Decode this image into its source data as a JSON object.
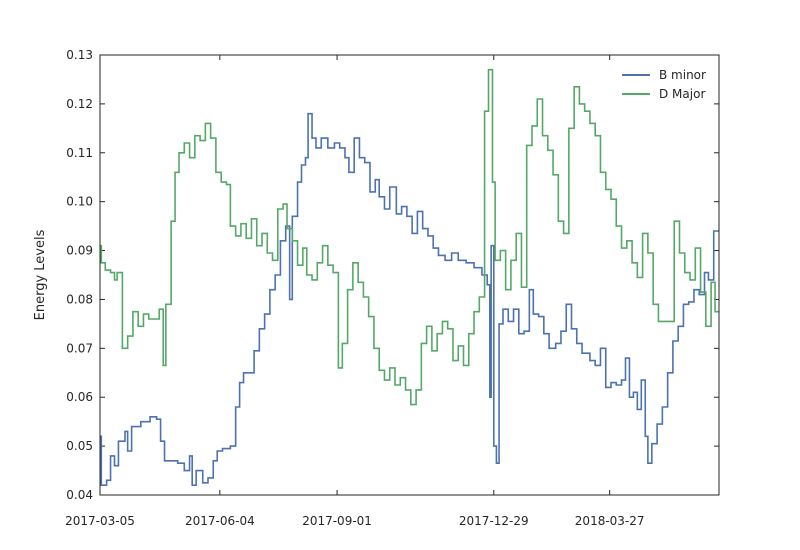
{
  "chart_data": {
    "type": "line",
    "title": "",
    "xlabel": "",
    "ylabel": "Energy Levels",
    "x_axis": {
      "type": "date",
      "range": [
        "2017-03-05",
        "2018-06-18"
      ],
      "ticks": [
        "2017-03-05",
        "2017-06-04",
        "2017-09-01",
        "2017-12-29",
        "2018-03-27"
      ]
    },
    "ylim": [
      0.04,
      0.13
    ],
    "yticks": [
      "0.04",
      "0.05",
      "0.06",
      "0.07",
      "0.08",
      "0.09",
      "0.10",
      "0.11",
      "0.12",
      "0.13"
    ],
    "grid": false,
    "legend_position": "top-right",
    "series": [
      {
        "name": "B minor",
        "color": "#4c72b0",
        "points": [
          [
            "2017-03-05",
            0.052
          ],
          [
            "2017-03-06",
            0.042
          ],
          [
            "2017-03-10",
            0.043
          ],
          [
            "2017-03-13",
            0.048
          ],
          [
            "2017-03-16",
            0.046
          ],
          [
            "2017-03-19",
            0.051
          ],
          [
            "2017-03-24",
            0.053
          ],
          [
            "2017-03-26",
            0.049
          ],
          [
            "2017-03-29",
            0.054
          ],
          [
            "2017-04-05",
            0.055
          ],
          [
            "2017-04-12",
            0.056
          ],
          [
            "2017-04-17",
            0.0555
          ],
          [
            "2017-04-20",
            0.051
          ],
          [
            "2017-04-23",
            0.047
          ],
          [
            "2017-05-03",
            0.0465
          ],
          [
            "2017-05-08",
            0.045
          ],
          [
            "2017-05-12",
            0.048
          ],
          [
            "2017-05-14",
            0.042
          ],
          [
            "2017-05-17",
            0.045
          ],
          [
            "2017-05-22",
            0.0425
          ],
          [
            "2017-05-26",
            0.0435
          ],
          [
            "2017-05-30",
            0.047
          ],
          [
            "2017-06-02",
            0.049
          ],
          [
            "2017-06-06",
            0.0495
          ],
          [
            "2017-06-12",
            0.05
          ],
          [
            "2017-06-16",
            0.058
          ],
          [
            "2017-06-19",
            0.063
          ],
          [
            "2017-06-22",
            0.065
          ],
          [
            "2017-06-26",
            0.065
          ],
          [
            "2017-06-30",
            0.0695
          ],
          [
            "2017-07-04",
            0.074
          ],
          [
            "2017-07-08",
            0.077
          ],
          [
            "2017-07-12",
            0.082
          ],
          [
            "2017-07-16",
            0.085
          ],
          [
            "2017-07-20",
            0.092
          ],
          [
            "2017-07-24",
            0.095
          ],
          [
            "2017-07-27",
            0.08
          ],
          [
            "2017-07-29",
            0.097
          ],
          [
            "2017-08-02",
            0.104
          ],
          [
            "2017-08-05",
            0.1075
          ],
          [
            "2017-08-08",
            0.109
          ],
          [
            "2017-08-10",
            0.118
          ],
          [
            "2017-08-13",
            0.113
          ],
          [
            "2017-08-16",
            0.111
          ],
          [
            "2017-08-20",
            0.113
          ],
          [
            "2017-08-25",
            0.111
          ],
          [
            "2017-08-30",
            0.112
          ],
          [
            "2017-09-03",
            0.111
          ],
          [
            "2017-09-07",
            0.109
          ],
          [
            "2017-09-10",
            0.106
          ],
          [
            "2017-09-14",
            0.113
          ],
          [
            "2017-09-18",
            0.109
          ],
          [
            "2017-09-22",
            0.108
          ],
          [
            "2017-09-26",
            0.102
          ],
          [
            "2017-09-30",
            0.1045
          ],
          [
            "2017-10-03",
            0.101
          ],
          [
            "2017-10-07",
            0.0985
          ],
          [
            "2017-10-11",
            0.103
          ],
          [
            "2017-10-16",
            0.0975
          ],
          [
            "2017-10-20",
            0.099
          ],
          [
            "2017-10-24",
            0.097
          ],
          [
            "2017-10-28",
            0.0935
          ],
          [
            "2017-11-01",
            0.098
          ],
          [
            "2017-11-05",
            0.0945
          ],
          [
            "2017-11-09",
            0.093
          ],
          [
            "2017-11-13",
            0.0905
          ],
          [
            "2017-11-17",
            0.089
          ],
          [
            "2017-11-22",
            0.088
          ],
          [
            "2017-11-27",
            0.0895
          ],
          [
            "2017-12-02",
            0.088
          ],
          [
            "2017-12-08",
            0.0875
          ],
          [
            "2017-12-14",
            0.0865
          ],
          [
            "2017-12-20",
            0.085
          ],
          [
            "2017-12-24",
            0.083
          ],
          [
            "2017-12-26",
            0.06
          ],
          [
            "2017-12-27",
            0.091
          ],
          [
            "2017-12-29",
            0.05
          ],
          [
            "2017-12-31",
            0.0465
          ],
          [
            "2018-01-02",
            0.075
          ],
          [
            "2018-01-05",
            0.078
          ],
          [
            "2018-01-09",
            0.0755
          ],
          [
            "2018-01-13",
            0.078
          ],
          [
            "2018-01-17",
            0.073
          ],
          [
            "2018-01-21",
            0.0735
          ],
          [
            "2018-01-25",
            0.082
          ],
          [
            "2018-01-28",
            0.077
          ],
          [
            "2018-02-01",
            0.0765
          ],
          [
            "2018-02-05",
            0.073
          ],
          [
            "2018-02-09",
            0.07
          ],
          [
            "2018-02-14",
            0.071
          ],
          [
            "2018-02-18",
            0.0735
          ],
          [
            "2018-02-22",
            0.079
          ],
          [
            "2018-02-26",
            0.074
          ],
          [
            "2018-03-02",
            0.071
          ],
          [
            "2018-03-06",
            0.069
          ],
          [
            "2018-03-12",
            0.0675
          ],
          [
            "2018-03-16",
            0.0665
          ],
          [
            "2018-03-20",
            0.07
          ],
          [
            "2018-03-24",
            0.062
          ],
          [
            "2018-03-28",
            0.063
          ],
          [
            "2018-04-01",
            0.0625
          ],
          [
            "2018-04-05",
            0.0635
          ],
          [
            "2018-04-08",
            0.068
          ],
          [
            "2018-04-11",
            0.06
          ],
          [
            "2018-04-14",
            0.061
          ],
          [
            "2018-04-17",
            0.0575
          ],
          [
            "2018-04-20",
            0.0635
          ],
          [
            "2018-04-23",
            0.052
          ],
          [
            "2018-04-25",
            0.0465
          ],
          [
            "2018-04-28",
            0.0505
          ],
          [
            "2018-05-02",
            0.0545
          ],
          [
            "2018-05-06",
            0.058
          ],
          [
            "2018-05-10",
            0.065
          ],
          [
            "2018-05-14",
            0.0715
          ],
          [
            "2018-05-18",
            0.0745
          ],
          [
            "2018-05-22",
            0.079
          ],
          [
            "2018-05-26",
            0.0795
          ],
          [
            "2018-05-30",
            0.082
          ],
          [
            "2018-06-03",
            0.081
          ],
          [
            "2018-06-07",
            0.0855
          ],
          [
            "2018-06-10",
            0.084
          ],
          [
            "2018-06-14",
            0.094
          ]
        ]
      },
      {
        "name": "D Major",
        "color": "#55a868",
        "points": [
          [
            "2017-03-05",
            0.091
          ],
          [
            "2017-03-06",
            0.0875
          ],
          [
            "2017-03-09",
            0.086
          ],
          [
            "2017-03-13",
            0.0855
          ],
          [
            "2017-03-16",
            0.084
          ],
          [
            "2017-03-18",
            0.0855
          ],
          [
            "2017-03-22",
            0.07
          ],
          [
            "2017-03-26",
            0.0725
          ],
          [
            "2017-03-30",
            0.0775
          ],
          [
            "2017-04-03",
            0.0745
          ],
          [
            "2017-04-07",
            0.077
          ],
          [
            "2017-04-11",
            0.076
          ],
          [
            "2017-04-15",
            0.076
          ],
          [
            "2017-04-19",
            0.078
          ],
          [
            "2017-04-22",
            0.0665
          ],
          [
            "2017-04-24",
            0.079
          ],
          [
            "2017-04-28",
            0.096
          ],
          [
            "2017-05-01",
            0.106
          ],
          [
            "2017-05-04",
            0.11
          ],
          [
            "2017-05-08",
            0.112
          ],
          [
            "2017-05-12",
            0.109
          ],
          [
            "2017-05-16",
            0.1135
          ],
          [
            "2017-05-20",
            0.1125
          ],
          [
            "2017-05-24",
            0.116
          ],
          [
            "2017-05-28",
            0.113
          ],
          [
            "2017-06-01",
            0.106
          ],
          [
            "2017-06-05",
            0.104
          ],
          [
            "2017-06-09",
            0.1035
          ],
          [
            "2017-06-12",
            0.095
          ],
          [
            "2017-06-16",
            0.093
          ],
          [
            "2017-06-20",
            0.0955
          ],
          [
            "2017-06-24",
            0.0925
          ],
          [
            "2017-06-28",
            0.0965
          ],
          [
            "2017-07-02",
            0.091
          ],
          [
            "2017-07-06",
            0.0935
          ],
          [
            "2017-07-10",
            0.0895
          ],
          [
            "2017-07-14",
            0.088
          ],
          [
            "2017-07-18",
            0.0985
          ],
          [
            "2017-07-22",
            0.0995
          ],
          [
            "2017-07-25",
            0.0945
          ],
          [
            "2017-07-29",
            0.092
          ],
          [
            "2017-08-02",
            0.087
          ],
          [
            "2017-08-06",
            0.0905
          ],
          [
            "2017-08-09",
            0.085
          ],
          [
            "2017-08-13",
            0.084
          ],
          [
            "2017-08-17",
            0.0875
          ],
          [
            "2017-08-21",
            0.091
          ],
          [
            "2017-08-25",
            0.087
          ],
          [
            "2017-08-29",
            0.0855
          ],
          [
            "2017-09-02",
            0.066
          ],
          [
            "2017-09-05",
            0.071
          ],
          [
            "2017-09-09",
            0.082
          ],
          [
            "2017-09-13",
            0.0875
          ],
          [
            "2017-09-17",
            0.0835
          ],
          [
            "2017-09-21",
            0.0805
          ],
          [
            "2017-09-25",
            0.0765
          ],
          [
            "2017-09-29",
            0.07
          ],
          [
            "2017-10-03",
            0.0655
          ],
          [
            "2017-10-07",
            0.0635
          ],
          [
            "2017-10-11",
            0.066
          ],
          [
            "2017-10-15",
            0.0625
          ],
          [
            "2017-10-19",
            0.064
          ],
          [
            "2017-10-23",
            0.0615
          ],
          [
            "2017-10-27",
            0.0585
          ],
          [
            "2017-10-31",
            0.0615
          ],
          [
            "2017-11-04",
            0.071
          ],
          [
            "2017-11-08",
            0.0745
          ],
          [
            "2017-11-12",
            0.0695
          ],
          [
            "2017-11-16",
            0.073
          ],
          [
            "2017-11-20",
            0.0755
          ],
          [
            "2017-11-24",
            0.074
          ],
          [
            "2017-11-28",
            0.0675
          ],
          [
            "2017-12-02",
            0.0705
          ],
          [
            "2017-12-06",
            0.0665
          ],
          [
            "2017-12-10",
            0.073
          ],
          [
            "2017-12-14",
            0.0775
          ],
          [
            "2017-12-18",
            0.0805
          ],
          [
            "2017-12-22",
            0.1185
          ],
          [
            "2017-12-25",
            0.127
          ],
          [
            "2017-12-28",
            0.104
          ],
          [
            "2017-12-30",
            0.088
          ],
          [
            "2018-01-03",
            0.09
          ],
          [
            "2018-01-07",
            0.082
          ],
          [
            "2018-01-11",
            0.088
          ],
          [
            "2018-01-15",
            0.0935
          ],
          [
            "2018-01-19",
            0.0825
          ],
          [
            "2018-01-23",
            0.1115
          ],
          [
            "2018-01-27",
            0.1155
          ],
          [
            "2018-01-31",
            0.121
          ],
          [
            "2018-02-04",
            0.1135
          ],
          [
            "2018-02-08",
            0.1105
          ],
          [
            "2018-02-12",
            0.1055
          ],
          [
            "2018-02-16",
            0.096
          ],
          [
            "2018-02-20",
            0.0935
          ],
          [
            "2018-02-24",
            0.115
          ],
          [
            "2018-02-28",
            0.1235
          ],
          [
            "2018-03-04",
            0.12
          ],
          [
            "2018-03-08",
            0.1185
          ],
          [
            "2018-03-12",
            0.116
          ],
          [
            "2018-03-16",
            0.1135
          ],
          [
            "2018-03-20",
            0.106
          ],
          [
            "2018-03-24",
            0.1025
          ],
          [
            "2018-03-28",
            0.1005
          ],
          [
            "2018-04-01",
            0.095
          ],
          [
            "2018-04-05",
            0.0905
          ],
          [
            "2018-04-09",
            0.092
          ],
          [
            "2018-04-13",
            0.0875
          ],
          [
            "2018-04-17",
            0.0845
          ],
          [
            "2018-04-21",
            0.0935
          ],
          [
            "2018-04-25",
            0.0895
          ],
          [
            "2018-04-29",
            0.079
          ],
          [
            "2018-05-03",
            0.0755
          ],
          [
            "2018-05-07",
            0.0755
          ],
          [
            "2018-05-11",
            0.0755
          ],
          [
            "2018-05-15",
            0.096
          ],
          [
            "2018-05-19",
            0.0895
          ],
          [
            "2018-05-23",
            0.0855
          ],
          [
            "2018-05-27",
            0.084
          ],
          [
            "2018-05-31",
            0.0905
          ],
          [
            "2018-06-04",
            0.0815
          ],
          [
            "2018-06-08",
            0.0745
          ],
          [
            "2018-06-12",
            0.0835
          ],
          [
            "2018-06-15",
            0.0775
          ]
        ]
      }
    ]
  }
}
